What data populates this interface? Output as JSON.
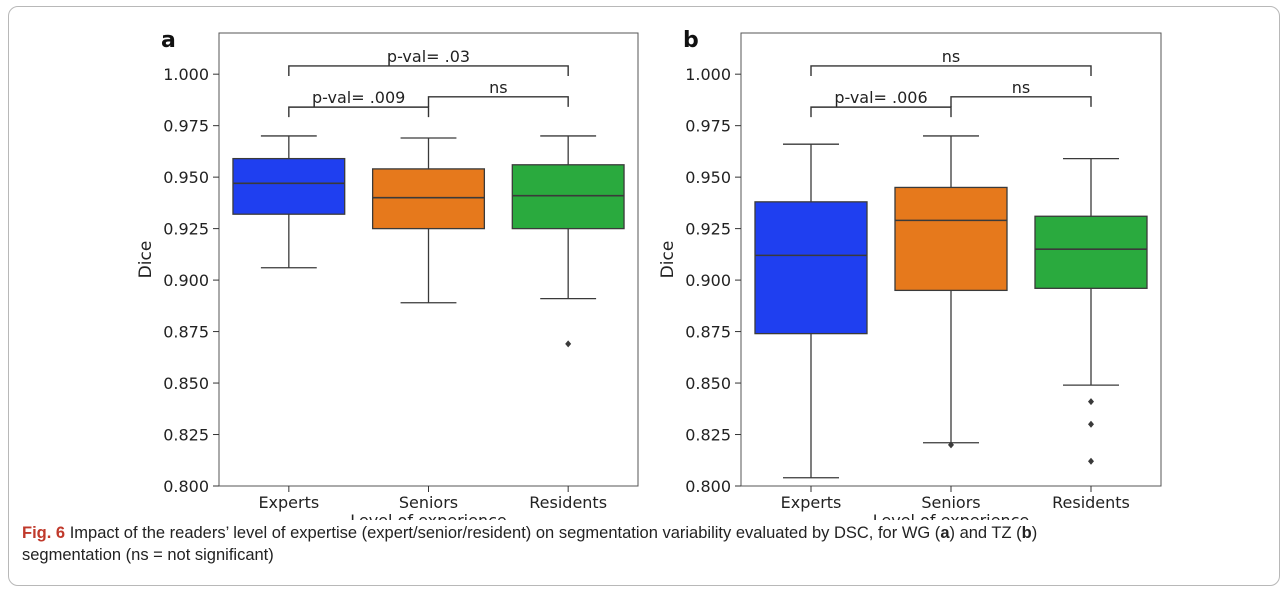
{
  "chart_data": [
    {
      "type": "box",
      "panel_label": "a",
      "xlabel": "Level of experience",
      "ylabel": "Dice",
      "ylim": [
        0.8,
        1.02
      ],
      "yticks": [
        "0.800",
        "0.825",
        "0.850",
        "0.875",
        "0.900",
        "0.925",
        "0.950",
        "0.975",
        "1.000"
      ],
      "categories": [
        "Experts",
        "Seniors",
        "Residents"
      ],
      "boxes": [
        {
          "category": "Experts",
          "color": "#1f3ff0",
          "whisker_low": 0.906,
          "q1": 0.932,
          "median": 0.947,
          "q3": 0.959,
          "whisker_high": 0.97,
          "outliers": []
        },
        {
          "category": "Seniors",
          "color": "#e6791c",
          "whisker_low": 0.889,
          "q1": 0.925,
          "median": 0.94,
          "q3": 0.954,
          "whisker_high": 0.969,
          "outliers": []
        },
        {
          "category": "Residents",
          "color": "#2aaa3e",
          "whisker_low": 0.891,
          "q1": 0.925,
          "median": 0.941,
          "q3": 0.956,
          "whisker_high": 0.97,
          "outliers": [
            0.869
          ]
        }
      ],
      "annotations": [
        {
          "from": 0,
          "to": 2,
          "y": 1.004,
          "label": "p-val= .03"
        },
        {
          "from": 1,
          "to": 2,
          "y": 0.989,
          "label": "ns"
        },
        {
          "from": 0,
          "to": 1,
          "y": 0.984,
          "label": "p-val= .009"
        }
      ]
    },
    {
      "type": "box",
      "panel_label": "b",
      "xlabel": "Level of experience",
      "ylabel": "Dice",
      "ylim": [
        0.8,
        1.02
      ],
      "yticks": [
        "0.800",
        "0.825",
        "0.850",
        "0.875",
        "0.900",
        "0.925",
        "0.950",
        "0.975",
        "1.000"
      ],
      "categories": [
        "Experts",
        "Seniors",
        "Residents"
      ],
      "boxes": [
        {
          "category": "Experts",
          "color": "#1f3ff0",
          "whisker_low": 0.804,
          "q1": 0.874,
          "median": 0.912,
          "q3": 0.938,
          "whisker_high": 0.966,
          "outliers": []
        },
        {
          "category": "Seniors",
          "color": "#e6791c",
          "whisker_low": 0.821,
          "q1": 0.895,
          "median": 0.929,
          "q3": 0.945,
          "whisker_high": 0.97,
          "outliers": [
            0.82
          ]
        },
        {
          "category": "Residents",
          "color": "#2aaa3e",
          "whisker_low": 0.849,
          "q1": 0.896,
          "median": 0.915,
          "q3": 0.931,
          "whisker_high": 0.959,
          "outliers": [
            0.841,
            0.83,
            0.812
          ]
        }
      ],
      "annotations": [
        {
          "from": 0,
          "to": 2,
          "y": 1.004,
          "label": "ns"
        },
        {
          "from": 1,
          "to": 2,
          "y": 0.989,
          "label": "ns"
        },
        {
          "from": 0,
          "to": 1,
          "y": 0.984,
          "label": "p-val= .006"
        }
      ]
    }
  ],
  "caption": {
    "fig_label": "Fig. 6",
    "p1": "Impact of the readers’ level of expertise (expert/senior/resident) on segmentation variability evaluated by DSC, for WG (",
    "b1": "a",
    "p2": ") and TZ (",
    "b2": "b",
    "p3": ")",
    "p4": "segmentation (ns = not significant)"
  }
}
